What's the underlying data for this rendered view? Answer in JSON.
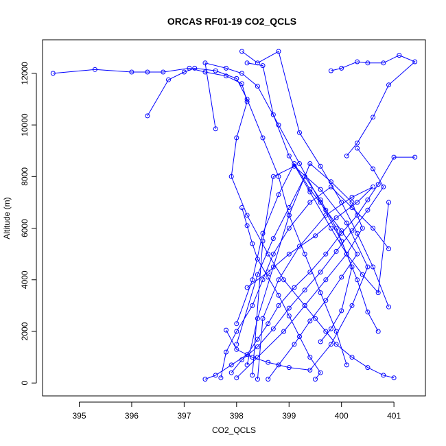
{
  "chart_data": {
    "type": "line",
    "title": "ORCAS RF01-19 CO2_QCLS",
    "xlabel": "CO2_QCLS",
    "ylabel": "Altitude (m)",
    "xlim": [
      394.3,
      401.6
    ],
    "ylim": [
      -500,
      13300
    ],
    "x_ticks": [
      395,
      396,
      397,
      398,
      399,
      400,
      401
    ],
    "y_ticks": [
      0,
      2000,
      4000,
      6000,
      8000,
      10000,
      12000
    ],
    "x_tick_labels": [
      "395",
      "396",
      "397",
      "398",
      "399",
      "400",
      "401"
    ],
    "y_tick_labels": [
      "0",
      "2000",
      "4000",
      "6000",
      "8000",
      "10000",
      "12000"
    ],
    "series_color": "#0000ff",
    "markers": "open-circle",
    "series": [
      {
        "x": [
          394.5,
          395.3,
          396.0,
          396.3,
          396.6,
          397.1,
          397.4,
          397.8,
          398.1,
          398.2,
          398.0,
          397.9,
          398.2,
          398.6,
          398.9,
          399.3,
          399.5,
          399.7,
          399.9,
          400.2,
          400.5,
          400.8,
          401.0
        ],
        "y": [
          12000,
          12150,
          12050,
          12050,
          12050,
          12200,
          12050,
          11900,
          11600,
          10900,
          9500,
          8000,
          6500,
          5000,
          4000,
          3000,
          2500,
          2000,
          1500,
          1000,
          600,
          300,
          200
        ]
      },
      {
        "x": [
          396.3,
          396.7,
          397.0,
          397.2,
          397.6,
          398.0,
          398.2,
          398.5,
          398.8,
          399.0,
          399.3,
          399.6,
          399.9,
          400.1
        ],
        "y": [
          10350,
          11750,
          12050,
          12200,
          12100,
          11800,
          11000,
          9500,
          8000,
          6500,
          5000,
          3500,
          2000,
          700
        ]
      },
      {
        "x": [
          397.6,
          397.4,
          397.8,
          398.1,
          398.4,
          398.8,
          399.2,
          399.6,
          400.0,
          400.3,
          400.5,
          400.7
        ],
        "y": [
          9850,
          12400,
          12200,
          12000,
          11500,
          10000,
          8500,
          7000,
          5500,
          4000,
          2750,
          2000
        ]
      },
      {
        "x": [
          398.1,
          398.4,
          398.8,
          399.2,
          399.6,
          400.0,
          400.3,
          400.6,
          400.9
        ],
        "y": [
          12850,
          12400,
          12850,
          9700,
          8400,
          7000,
          5800,
          4500,
          2950
        ]
      },
      {
        "x": [
          398.2,
          398.5,
          398.7,
          399.0,
          399.4,
          399.8,
          400.1,
          400.4,
          400.7,
          400.9
        ],
        "y": [
          12400,
          12300,
          10400,
          8800,
          7400,
          6000,
          5000,
          4200,
          3500,
          7000
        ]
      },
      {
        "x": [
          399.8,
          400.0,
          400.3,
          400.5,
          400.8,
          401.1,
          401.4,
          400.9,
          400.6,
          400.3,
          400.1
        ],
        "y": [
          12100,
          12200,
          12450,
          12400,
          12400,
          12700,
          12450,
          11550,
          10300,
          9300,
          8800
        ]
      },
      {
        "x": [
          401.4,
          401.0,
          400.7,
          400.5,
          400.3,
          400.0,
          399.7,
          399.4,
          399.1,
          398.8,
          398.6,
          398.4,
          398.2,
          397.9,
          397.6,
          397.4
        ],
        "y": [
          8750,
          8750,
          7700,
          7100,
          6500,
          5800,
          5000,
          4300,
          3700,
          3000,
          2300,
          1700,
          1100,
          700,
          300,
          150
        ]
      },
      {
        "x": [
          400.9,
          400.6,
          400.2,
          399.8,
          399.4,
          399.0,
          398.7,
          398.5,
          398.3,
          398.0,
          397.8,
          397.7
        ],
        "y": [
          5200,
          6000,
          6800,
          7600,
          7000,
          6000,
          5000,
          4000,
          3000,
          2000,
          1200,
          200
        ]
      },
      {
        "x": [
          398.2,
          398.6,
          399.0,
          399.5,
          399.9,
          400.3,
          400.6,
          400.2,
          399.7,
          399.2,
          398.8,
          398.5,
          398.4
        ],
        "y": [
          3700,
          4300,
          5000,
          5700,
          6400,
          7000,
          7600,
          7200,
          6500,
          5300,
          4000,
          2500,
          150
        ]
      },
      {
        "x": [
          397.8,
          398.0,
          398.3,
          398.6,
          399.0,
          399.4,
          399.8,
          400.2,
          400.5,
          400.1,
          399.6,
          399.1,
          398.7,
          398.5,
          398.3
        ],
        "y": [
          2050,
          1300,
          1000,
          800,
          600,
          500,
          1500,
          3000,
          4500,
          6200,
          7500,
          8400,
          8000,
          5500,
          300
        ]
      },
      {
        "x": [
          399.5,
          399.6,
          399.4,
          399.2,
          399.0,
          398.8,
          398.6,
          398.4,
          398.3,
          398.2,
          398.1
        ],
        "y": [
          150,
          400,
          1000,
          1800,
          2600,
          3400,
          4100,
          4800,
          5400,
          6100,
          6800
        ]
      },
      {
        "x": [
          399.6,
          399.8,
          400.0,
          400.2,
          399.9,
          399.6,
          399.3,
          399.0,
          398.7,
          398.4,
          398.0
        ],
        "y": [
          1600,
          2100,
          2800,
          4500,
          6000,
          7100,
          8000,
          6800,
          5600,
          4200,
          1500
        ]
      },
      {
        "x": [
          398.6,
          398.8,
          399.1,
          399.4,
          399.7,
          400.0,
          400.3,
          400.0,
          399.7,
          399.4,
          399.1,
          398.8,
          398.5,
          398.3,
          398.0
        ],
        "y": [
          150,
          700,
          1500,
          2400,
          3200,
          4100,
          5000,
          5900,
          6700,
          7500,
          8500,
          7300,
          5800,
          4000,
          2300
        ]
      },
      {
        "x": [
          397.9,
          398.1,
          398.4,
          398.7,
          399.0,
          399.3,
          399.6,
          399.9,
          400.2,
          400.5,
          400.8,
          400.6,
          400.3
        ],
        "y": [
          400,
          900,
          1400,
          2100,
          2900,
          3600,
          4300,
          5100,
          5900,
          6700,
          7600,
          8300,
          9100
        ]
      },
      {
        "x": [
          398.0,
          398.4,
          398.9,
          399.3,
          399.7,
          400.1,
          400.4,
          400.2,
          399.8,
          399.4,
          399.0,
          398.7,
          398.4,
          398.2
        ],
        "y": [
          200,
          1000,
          2000,
          3000,
          4000,
          5000,
          6000,
          7000,
          7800,
          8500,
          6500,
          4500,
          2500,
          700
        ]
      }
    ]
  }
}
